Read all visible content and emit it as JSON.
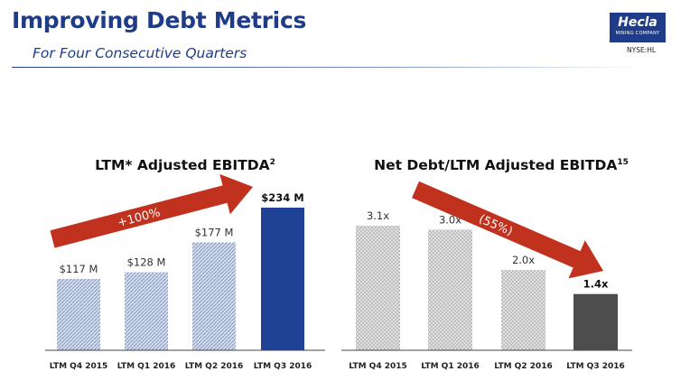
{
  "header": {
    "title": "Improving Debt Metrics",
    "subtitle": "For Four Consecutive Quarters",
    "logo_word": "Hecla",
    "logo_sub": "MINING COMPANY",
    "ticker": "NYSE:HL",
    "brand_color": "#1f3c88"
  },
  "chart_data": [
    {
      "type": "bar",
      "title": "LTM* Adjusted EBITDA",
      "title_sup": "2",
      "categories": [
        "LTM Q4 2015",
        "LTM Q1 2016",
        "LTM Q2 2016",
        "LTM Q3 2016"
      ],
      "values": [
        117,
        128,
        177,
        234
      ],
      "value_labels": [
        "$117 M",
        "$128 M",
        "$177 M",
        "$234 M"
      ],
      "unit": "$M",
      "ylim": [
        0,
        250
      ],
      "grid": false,
      "arrow_annotation": "+100%",
      "colors": {
        "bar": "#9fb3d8",
        "highlight": "#1f4196",
        "arrow": "#c0311e"
      }
    },
    {
      "type": "bar",
      "title": "Net Debt/LTM Adjusted EBITDA",
      "title_sup": "15",
      "categories": [
        "LTM Q4 2015",
        "LTM Q1 2016",
        "LTM Q2 2016",
        "LTM Q3 2016"
      ],
      "values": [
        3.1,
        3.0,
        2.0,
        1.4
      ],
      "value_labels": [
        "3.1x",
        "3.0x",
        "2.0x",
        "1.4x"
      ],
      "unit": "x",
      "ylim": [
        0,
        3.4
      ],
      "grid": false,
      "arrow_annotation": "(55%)",
      "colors": {
        "bar": "#c8c8c8",
        "highlight": "#4d4d4d",
        "arrow": "#c0311e"
      }
    }
  ]
}
